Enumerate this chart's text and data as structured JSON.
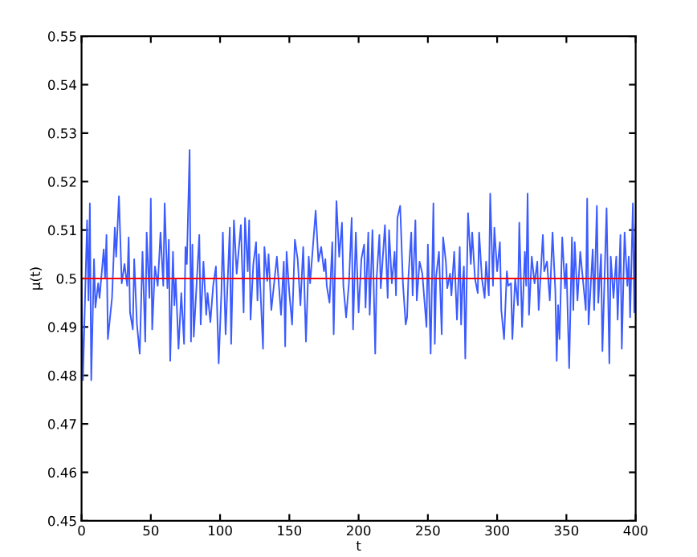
{
  "chart_data": {
    "type": "line",
    "xlabel": "t",
    "ylabel": "μ(t)",
    "xlim": [
      0,
      400
    ],
    "xticks": [
      0,
      50,
      100,
      150,
      200,
      250,
      300,
      350,
      400
    ],
    "ylim": [
      0.45,
      0.55
    ],
    "yticks": [
      0.45,
      0.46,
      0.47,
      0.48,
      0.49,
      0.5,
      0.51,
      0.52,
      0.53,
      0.54,
      0.55
    ],
    "grid": false,
    "ref_lines": [
      {
        "axis": "y",
        "value": 0.5,
        "color": "#ff0000"
      }
    ],
    "series": [
      {
        "color": "#3b5bff",
        "x": [
          0,
          1,
          4,
          5,
          6,
          7,
          9,
          10,
          12,
          13,
          16,
          17,
          18,
          19,
          22,
          24,
          25,
          27,
          29,
          31,
          33,
          34,
          35,
          37,
          38,
          40,
          42,
          44,
          46,
          47,
          49,
          50,
          51,
          53,
          55,
          57,
          59,
          60,
          62,
          63,
          64,
          66,
          67,
          68,
          70,
          72,
          74,
          75,
          76,
          78,
          79,
          80,
          81,
          85,
          86,
          88,
          90,
          91,
          93,
          95,
          97,
          99,
          101,
          102,
          104,
          107,
          108,
          110,
          112,
          115,
          117,
          118,
          120,
          121,
          122,
          124,
          126,
          127,
          128,
          131,
          132,
          134,
          135,
          137,
          139,
          141,
          144,
          146,
          147,
          148,
          150,
          152,
          154,
          156,
          158,
          160,
          162,
          164,
          165,
          167,
          169,
          171,
          173,
          175,
          176,
          177,
          179,
          181,
          182,
          184,
          186,
          188,
          189,
          191,
          193,
          195,
          196,
          198,
          200,
          202,
          204,
          205,
          207,
          208,
          210,
          212,
          213,
          215,
          216,
          219,
          221,
          222,
          224,
          226,
          227,
          228,
          230,
          232,
          234,
          235,
          236,
          238,
          239,
          241,
          242,
          244,
          246,
          249,
          250,
          252,
          254,
          255,
          256,
          258,
          260,
          261,
          263,
          264,
          266,
          267,
          269,
          271,
          273,
          274,
          275,
          276,
          277,
          279,
          281,
          282,
          284,
          286,
          287,
          289,
          291,
          292,
          294,
          295,
          297,
          298,
          300,
          302,
          303,
          305,
          307,
          308,
          310,
          311,
          313,
          315,
          316,
          318,
          320,
          321,
          322,
          323,
          325,
          327,
          329,
          330,
          333,
          334,
          336,
          338,
          340,
          342,
          343,
          344,
          345,
          347,
          349,
          350,
          352,
          354,
          355,
          356,
          358,
          360,
          362,
          364,
          365,
          366,
          369,
          370,
          372,
          373,
          375,
          376,
          379,
          381,
          382,
          384,
          386,
          387,
          389,
          390,
          392,
          394,
          395,
          396,
          398,
          399,
          400
        ],
        "values": [
          0.4998,
          0.479,
          0.512,
          0.4955,
          0.5155,
          0.479,
          0.504,
          0.494,
          0.499,
          0.496,
          0.506,
          0.5,
          0.509,
          0.4875,
          0.496,
          0.5105,
          0.5045,
          0.517,
          0.499,
          0.503,
          0.4985,
          0.5085,
          0.493,
          0.4895,
          0.504,
          0.4905,
          0.4845,
          0.5055,
          0.487,
          0.5095,
          0.496,
          0.5165,
          0.4895,
          0.5025,
          0.4985,
          0.5095,
          0.4985,
          0.5155,
          0.498,
          0.508,
          0.483,
          0.5055,
          0.4945,
          0.5,
          0.4855,
          0.497,
          0.4865,
          0.5065,
          0.503,
          0.5265,
          0.487,
          0.507,
          0.488,
          0.509,
          0.4905,
          0.5035,
          0.4925,
          0.497,
          0.491,
          0.4985,
          0.5025,
          0.4825,
          0.4975,
          0.5095,
          0.4885,
          0.5105,
          0.4865,
          0.512,
          0.501,
          0.511,
          0.493,
          0.5125,
          0.5015,
          0.512,
          0.4915,
          0.503,
          0.5075,
          0.4955,
          0.505,
          0.4855,
          0.5065,
          0.4995,
          0.505,
          0.4935,
          0.499,
          0.5045,
          0.4925,
          0.5035,
          0.486,
          0.5055,
          0.497,
          0.4905,
          0.508,
          0.504,
          0.4945,
          0.5065,
          0.487,
          0.5045,
          0.499,
          0.5065,
          0.514,
          0.5035,
          0.5065,
          0.5015,
          0.504,
          0.4985,
          0.495,
          0.5075,
          0.4885,
          0.516,
          0.5045,
          0.5115,
          0.4985,
          0.492,
          0.499,
          0.5125,
          0.4895,
          0.5095,
          0.493,
          0.504,
          0.507,
          0.494,
          0.5095,
          0.4925,
          0.51,
          0.4845,
          0.5,
          0.509,
          0.498,
          0.511,
          0.496,
          0.51,
          0.499,
          0.5055,
          0.4965,
          0.5125,
          0.515,
          0.499,
          0.4905,
          0.492,
          0.5005,
          0.5095,
          0.4965,
          0.512,
          0.4955,
          0.5035,
          0.501,
          0.49,
          0.507,
          0.4845,
          0.5155,
          0.4865,
          0.5005,
          0.5055,
          0.4885,
          0.5085,
          0.5035,
          0.498,
          0.501,
          0.4965,
          0.5055,
          0.4915,
          0.5065,
          0.4905,
          0.4985,
          0.5025,
          0.4835,
          0.5135,
          0.503,
          0.5095,
          0.5,
          0.497,
          0.5095,
          0.5,
          0.496,
          0.5035,
          0.4965,
          0.5175,
          0.4985,
          0.5105,
          0.5015,
          0.5075,
          0.4935,
          0.4875,
          0.5015,
          0.4985,
          0.499,
          0.4875,
          0.5,
          0.4945,
          0.5115,
          0.49,
          0.5055,
          0.4985,
          0.5175,
          0.4925,
          0.5045,
          0.499,
          0.5035,
          0.4935,
          0.509,
          0.5015,
          0.5035,
          0.4955,
          0.5095,
          0.4975,
          0.483,
          0.4945,
          0.4875,
          0.5085,
          0.498,
          0.503,
          0.4815,
          0.5085,
          0.4935,
          0.5075,
          0.4955,
          0.5055,
          0.4995,
          0.4935,
          0.5165,
          0.4905,
          0.506,
          0.4935,
          0.515,
          0.495,
          0.505,
          0.485,
          0.5145,
          0.4825,
          0.5045,
          0.496,
          0.5045,
          0.4915,
          0.509,
          0.4855,
          0.5095,
          0.4985,
          0.5045,
          0.492,
          0.5155,
          0.493,
          0.511
        ]
      }
    ]
  }
}
